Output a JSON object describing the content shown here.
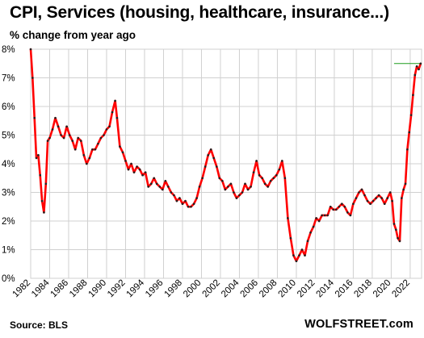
{
  "title": "CPI, Services (housing, healthcare, insurance...)",
  "subtitle": "% change from year ago",
  "source": "Source: BLS",
  "brand": "WOLFSTREET.com",
  "colors": {
    "line": "#ff0000",
    "markers": "#222222",
    "reference_line": "#1e9e1e",
    "grid": "#d0d0d0"
  },
  "chart_data": {
    "type": "line",
    "title": "CPI, Services (housing, healthcare, insurance...)",
    "ylabel": "% change from year ago",
    "xlabel": "",
    "ylim": [
      0,
      8
    ],
    "xlim": [
      1982,
      2023.2
    ],
    "y_ticks": [
      "0%",
      "1%",
      "2%",
      "3%",
      "4%",
      "5%",
      "6%",
      "7%",
      "8%"
    ],
    "x_ticks": [
      "1982",
      "1984",
      "1986",
      "1988",
      "1990",
      "1992",
      "1994",
      "1996",
      "1998",
      "2000",
      "2002",
      "2004",
      "2006",
      "2008",
      "2010",
      "2012",
      "2014",
      "2016",
      "2018",
      "2020",
      "2022"
    ],
    "grid": true,
    "legend": "none",
    "reference_lines": [
      {
        "y": 7.5,
        "x_start": 2020.3,
        "x_end": 2023.2
      }
    ],
    "series": [
      {
        "x": [
          1982.0,
          1982.2,
          1982.4,
          1982.6,
          1982.8,
          1983.0,
          1983.2,
          1983.4,
          1983.6,
          1983.8,
          1984.0,
          1984.3,
          1984.6,
          1984.9,
          1985.2,
          1985.5,
          1985.8,
          1986.1,
          1986.4,
          1986.7,
          1987.0,
          1987.3,
          1987.6,
          1987.9,
          1988.2,
          1988.5,
          1988.8,
          1989.1,
          1989.4,
          1989.7,
          1990.0,
          1990.3,
          1990.6,
          1990.9,
          1991.1,
          1991.4,
          1991.7,
          1992.0,
          1992.3,
          1992.6,
          1992.9,
          1993.2,
          1993.5,
          1993.8,
          1994.1,
          1994.4,
          1994.7,
          1995.0,
          1995.3,
          1995.6,
          1995.9,
          1996.2,
          1996.5,
          1996.8,
          1997.1,
          1997.4,
          1997.7,
          1998.0,
          1998.3,
          1998.6,
          1998.9,
          1999.2,
          1999.5,
          1999.8,
          2000.1,
          2000.4,
          2000.7,
          2001.0,
          2001.3,
          2001.6,
          2001.9,
          2002.2,
          2002.5,
          2002.8,
          2003.1,
          2003.4,
          2003.7,
          2004.0,
          2004.3,
          2004.6,
          2004.9,
          2005.2,
          2005.5,
          2005.8,
          2006.1,
          2006.4,
          2006.7,
          2007.0,
          2007.3,
          2007.6,
          2007.9,
          2008.2,
          2008.5,
          2008.8,
          2009.1,
          2009.4,
          2009.7,
          2010.0,
          2010.3,
          2010.6,
          2010.9,
          2011.2,
          2011.5,
          2011.8,
          2012.1,
          2012.4,
          2012.7,
          2013.0,
          2013.3,
          2013.6,
          2013.9,
          2014.2,
          2014.5,
          2014.8,
          2015.1,
          2015.4,
          2015.7,
          2016.0,
          2016.3,
          2016.6,
          2016.9,
          2017.2,
          2017.5,
          2017.8,
          2018.1,
          2018.4,
          2018.7,
          2019.0,
          2019.3,
          2019.6,
          2019.9,
          2020.1,
          2020.3,
          2020.5,
          2020.7,
          2020.9,
          2021.1,
          2021.3,
          2021.5,
          2021.7,
          2021.9,
          2022.1,
          2022.3,
          2022.5,
          2022.7,
          2022.9,
          2023.1
        ],
        "values": [
          8.0,
          7.0,
          5.6,
          4.2,
          4.3,
          3.6,
          2.7,
          2.3,
          3.3,
          4.8,
          4.9,
          5.2,
          5.6,
          5.3,
          5.0,
          4.9,
          5.3,
          5.0,
          4.8,
          4.5,
          4.9,
          4.8,
          4.3,
          4.0,
          4.2,
          4.5,
          4.5,
          4.7,
          4.9,
          5.0,
          5.2,
          5.3,
          5.8,
          6.2,
          5.6,
          4.6,
          4.4,
          4.1,
          3.8,
          4.0,
          3.7,
          3.9,
          3.8,
          3.6,
          3.7,
          3.2,
          3.3,
          3.5,
          3.3,
          3.2,
          3.1,
          3.4,
          3.2,
          3.0,
          2.9,
          2.7,
          2.8,
          2.6,
          2.7,
          2.5,
          2.5,
          2.6,
          2.8,
          3.2,
          3.5,
          3.9,
          4.3,
          4.5,
          4.2,
          3.9,
          3.5,
          3.4,
          3.1,
          3.2,
          3.3,
          3.0,
          2.8,
          2.9,
          3.0,
          3.3,
          3.1,
          3.2,
          3.7,
          4.1,
          3.6,
          3.5,
          3.3,
          3.2,
          3.4,
          3.5,
          3.6,
          3.8,
          4.1,
          3.5,
          2.1,
          1.4,
          0.8,
          0.6,
          0.8,
          1.0,
          0.8,
          1.3,
          1.6,
          1.8,
          2.1,
          2.0,
          2.2,
          2.2,
          2.2,
          2.5,
          2.4,
          2.4,
          2.5,
          2.6,
          2.5,
          2.3,
          2.2,
          2.6,
          2.8,
          3.0,
          3.1,
          2.9,
          2.7,
          2.6,
          2.7,
          2.8,
          2.9,
          2.8,
          2.6,
          2.8,
          3.0,
          2.7,
          1.9,
          1.7,
          1.4,
          1.3,
          2.8,
          3.1,
          3.3,
          4.5,
          5.1,
          5.7,
          6.4,
          7.1,
          7.4,
          7.3,
          7.5
        ]
      }
    ]
  }
}
